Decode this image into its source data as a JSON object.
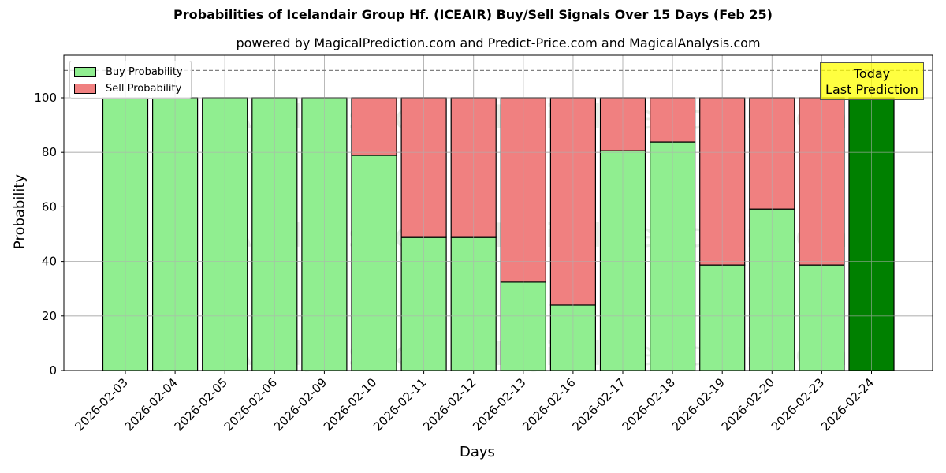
{
  "title": "Probabilities of Icelandair Group Hf. (ICEAIR) Buy/Sell Signals Over 15 Days (Feb 25)",
  "subtitle": "powered by MagicalPrediction.com and Predict-Price.com and MagicalAnalysis.com",
  "watermarks": [
    "MagicalAnalysis.com",
    "MagicalPrediction.com"
  ],
  "annotation": {
    "line1": "Today",
    "line2": "Last Prediction"
  },
  "colors": {
    "buy": "#90ee90",
    "sell": "#f08080",
    "today": "#008000",
    "annotation_bg": "#ffff00"
  },
  "chart_data": {
    "type": "bar",
    "stacked": true,
    "title": "Probabilities of Icelandair Group Hf. (ICEAIR) Buy/Sell Signals Over 15 Days (Feb 25)",
    "subtitle": "powered by MagicalPrediction.com and Predict-Price.com and MagicalAnalysis.com",
    "xlabel": "Days",
    "ylabel": "Probability",
    "ylim": [
      0,
      115
    ],
    "yticks": [
      0,
      20,
      40,
      60,
      80,
      100
    ],
    "grid": true,
    "legend_position": "upper left",
    "reference_line": {
      "y": 110,
      "style": "dashed",
      "color": "#808080"
    },
    "categories": [
      "2026-02-03",
      "2026-02-04",
      "2026-02-05",
      "2026-02-06",
      "2026-02-09",
      "2026-02-10",
      "2026-02-11",
      "2026-02-12",
      "2026-02-13",
      "2026-02-16",
      "2026-02-17",
      "2026-02-18",
      "2026-02-19",
      "2026-02-20",
      "2026-02-23",
      "2026-02-24"
    ],
    "series": [
      {
        "name": "Buy Probability",
        "values": [
          100,
          100,
          100,
          100,
          100,
          78.9,
          48.8,
          48.8,
          32.4,
          24.0,
          80.6,
          83.8,
          38.7,
          59.2,
          38.7,
          100
        ]
      },
      {
        "name": "Sell Probability",
        "values": [
          0,
          0,
          0,
          0,
          0,
          21.1,
          51.2,
          51.2,
          67.6,
          76.0,
          19.4,
          16.2,
          61.3,
          40.8,
          61.3,
          0
        ]
      }
    ],
    "highlight": {
      "category": "2026-02-24",
      "label": "Today Last Prediction",
      "color": "#008000"
    }
  }
}
